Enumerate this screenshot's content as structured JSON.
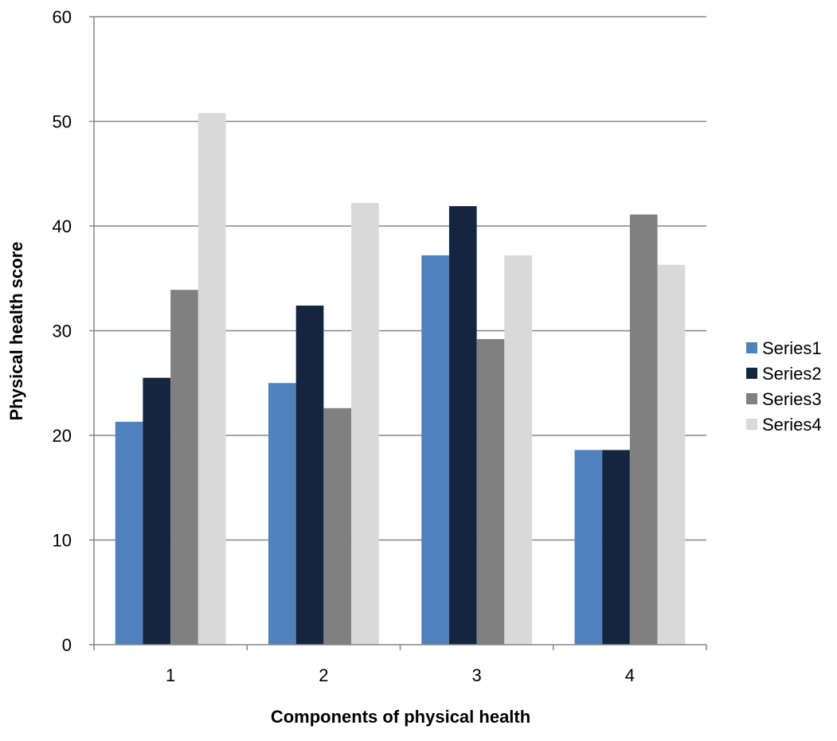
{
  "chart_data": {
    "type": "bar",
    "title": "",
    "xlabel": "Components of physical health",
    "ylabel": "Physical health score",
    "categories": [
      "1",
      "2",
      "3",
      "4"
    ],
    "series": [
      {
        "name": "Series1",
        "color": "#4F81BD",
        "values": [
          21.3,
          25.0,
          37.2,
          18.6
        ]
      },
      {
        "name": "Series2",
        "color": "#14263F",
        "values": [
          25.5,
          32.4,
          41.9,
          18.6
        ]
      },
      {
        "name": "Series3",
        "color": "#808080",
        "values": [
          33.9,
          22.6,
          29.2,
          41.1
        ]
      },
      {
        "name": "Series4",
        "color": "#D9D9D9",
        "values": [
          50.8,
          42.2,
          37.2,
          36.3
        ]
      }
    ],
    "ylim": [
      0,
      60
    ],
    "yticks": [
      0,
      10,
      20,
      30,
      40,
      50,
      60
    ],
    "grid": true,
    "legend": "right"
  }
}
